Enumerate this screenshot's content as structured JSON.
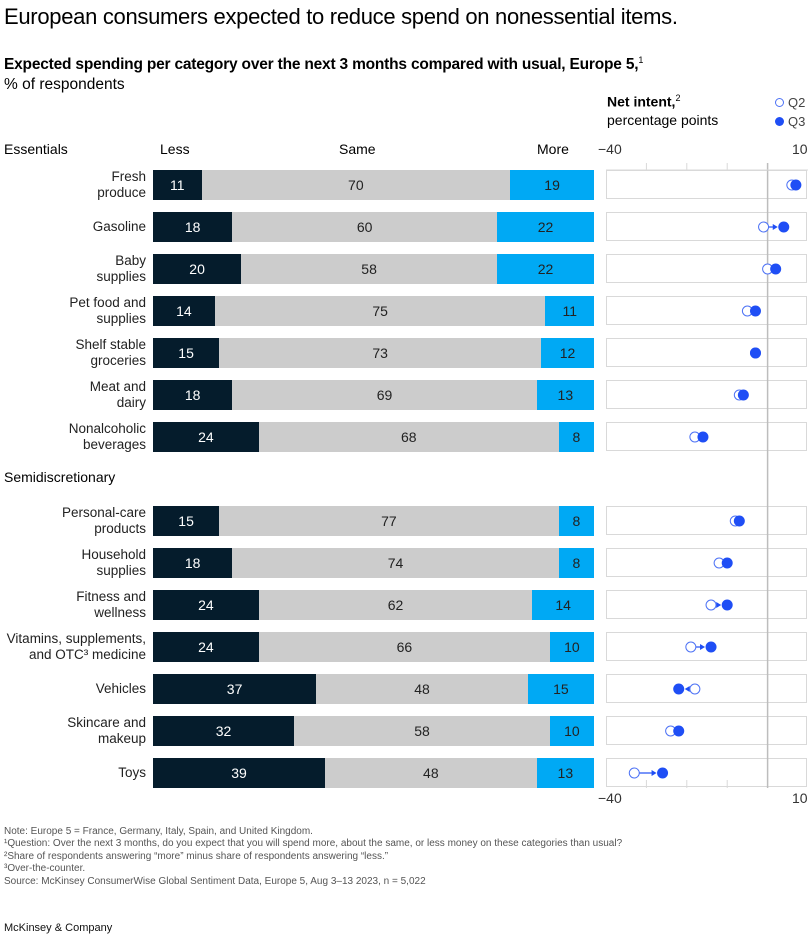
{
  "header": {
    "title": "European consumers expected to reduce spend on nonessential items.",
    "subtitle": "Expected spending per category over the next 3 months compared with usual, Europe 5,",
    "subtitle_footnote": "1",
    "unit": "% of respondents"
  },
  "net_intent_header": {
    "title": "Net intent,",
    "title_footnote": "2",
    "subtitle": "percentage points",
    "legend": [
      {
        "label": "Q2",
        "style": "hollow",
        "color": "#4d72f5"
      },
      {
        "label": "Q3",
        "style": "filled",
        "color": "#1f4ef5"
      }
    ]
  },
  "columns": {
    "group_first": "Essentials",
    "less": "Less",
    "same": "Same",
    "more": "More"
  },
  "colors": {
    "less": "#051c2c",
    "same": "#cccccc",
    "more": "#00a9f4",
    "q2": "#4d72f5",
    "q3": "#1f4ef5"
  },
  "chart_data": [
    {
      "type": "bar",
      "subtype": "stacked-horizontal-100",
      "title": "Expected spending per category over the next 3 months compared with usual, Europe 5",
      "xlabel": "% of respondents",
      "series_names": [
        "Less",
        "Same",
        "More"
      ],
      "groups": [
        {
          "name": "Essentials",
          "categories": [
            {
              "label_lines": [
                "Fresh",
                "produce"
              ],
              "less": 11,
              "same": 70,
              "more": 19
            },
            {
              "label_lines": [
                "Gasoline"
              ],
              "less": 18,
              "same": 60,
              "more": 22
            },
            {
              "label_lines": [
                "Baby",
                "supplies"
              ],
              "less": 20,
              "same": 58,
              "more": 22
            },
            {
              "label_lines": [
                "Pet food and",
                "supplies"
              ],
              "less": 14,
              "same": 75,
              "more": 11
            },
            {
              "label_lines": [
                "Shelf stable",
                "groceries"
              ],
              "less": 15,
              "same": 73,
              "more": 12
            },
            {
              "label_lines": [
                "Meat and",
                "dairy"
              ],
              "less": 18,
              "same": 69,
              "more": 13
            },
            {
              "label_lines": [
                "Nonalcoholic",
                "beverages"
              ],
              "less": 24,
              "same": 68,
              "more": 8
            }
          ]
        },
        {
          "name": "Semidiscretionary",
          "categories": [
            {
              "label_lines": [
                "Personal-care",
                "products"
              ],
              "less": 15,
              "same": 77,
              "more": 8
            },
            {
              "label_lines": [
                "Household",
                "supplies"
              ],
              "less": 18,
              "same": 74,
              "more": 8
            },
            {
              "label_lines": [
                "Fitness and",
                "wellness"
              ],
              "less": 24,
              "same": 62,
              "more": 14
            },
            {
              "label_lines": [
                "Vitamins, supplements,",
                "and OTC³ medicine"
              ],
              "less": 24,
              "same": 66,
              "more": 10
            },
            {
              "label_lines": [
                "Vehicles"
              ],
              "less": 37,
              "same": 48,
              "more": 15
            },
            {
              "label_lines": [
                "Skincare and",
                "makeup"
              ],
              "less": 32,
              "same": 58,
              "more": 10
            },
            {
              "label_lines": [
                "Toys"
              ],
              "less": 39,
              "same": 48,
              "more": 13
            }
          ]
        }
      ]
    },
    {
      "type": "scatter",
      "subtype": "dumbbell",
      "title": "Net intent, percentage points",
      "xlim": [
        -40,
        10
      ],
      "x_tick_labels": [
        "−40",
        "10"
      ],
      "gridlines": [
        -30,
        -20,
        -10,
        0
      ],
      "series": [
        "Q2",
        "Q3"
      ],
      "points": [
        {
          "category": "Fresh produce",
          "q2": 6,
          "q3": 7
        },
        {
          "category": "Gasoline",
          "q2": -1,
          "q3": 4
        },
        {
          "category": "Baby supplies",
          "q2": 0,
          "q3": 2
        },
        {
          "category": "Pet food and supplies",
          "q2": -5,
          "q3": -3
        },
        {
          "category": "Shelf stable groceries",
          "q2": -3,
          "q3": -3
        },
        {
          "category": "Meat and dairy",
          "q2": -7,
          "q3": -6
        },
        {
          "category": "Nonalcoholic beverages",
          "q2": -18,
          "q3": -16
        },
        {
          "category": "Personal-care products",
          "q2": -8,
          "q3": -7
        },
        {
          "category": "Household supplies",
          "q2": -12,
          "q3": -10
        },
        {
          "category": "Fitness and wellness",
          "q2": -14,
          "q3": -10
        },
        {
          "category": "Vitamins, supplements, and OTC medicine",
          "q2": -19,
          "q3": -14
        },
        {
          "category": "Vehicles",
          "q2": -18,
          "q3": -22
        },
        {
          "category": "Skincare and makeup",
          "q2": -24,
          "q3": -22
        },
        {
          "category": "Toys",
          "q2": -33,
          "q3": -26
        }
      ]
    }
  ],
  "footnotes": [
    "Note: Europe 5 = France, Germany, Italy, Spain, and United Kingdom.",
    "¹Question: Over the next 3 months, do you expect that you will spend more, about the same, or less money on these categories than usual?",
    "²Share of respondents answering “more” minus share of respondents answering “less.”",
    "³Over-the-counter.",
    "Source: McKinsey ConsumerWise Global Sentiment Data, Europe 5, Aug 3–13 2023, n = 5,022"
  ],
  "brand": "McKinsey & Company"
}
